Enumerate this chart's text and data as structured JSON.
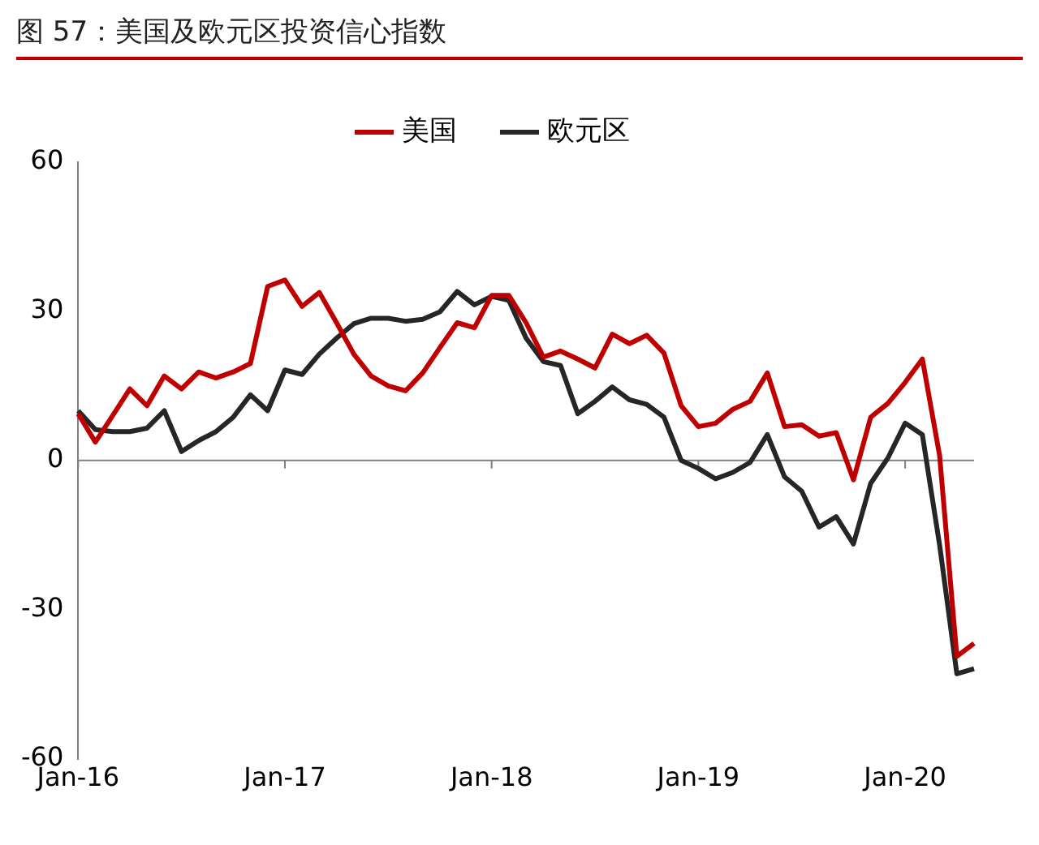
{
  "chart_data": {
    "type": "line",
    "title": "图 57：美国及欧元区投资信心指数",
    "categories": [
      "Jan-16",
      null,
      null,
      null,
      null,
      null,
      null,
      null,
      null,
      null,
      null,
      null,
      "Jan-17",
      null,
      null,
      null,
      null,
      null,
      null,
      null,
      null,
      null,
      null,
      null,
      "Jan-18",
      null,
      null,
      null,
      null,
      null,
      null,
      null,
      null,
      null,
      null,
      null,
      "Jan-19",
      null,
      null,
      null,
      null,
      null,
      null,
      null,
      null,
      null,
      null,
      null,
      "Jan-20",
      null,
      null,
      null,
      null
    ],
    "series": [
      {
        "name": "美国",
        "color": "#c00000",
        "values": [
          9.4,
          3.7,
          9,
          14.4,
          11,
          17,
          14.4,
          17.8,
          16.6,
          17.8,
          19.5,
          35,
          36.3,
          31,
          33.8,
          27.7,
          21.4,
          17,
          15,
          14,
          17.6,
          22.7,
          27.7,
          26.7,
          33.2,
          33.2,
          27.7,
          20.8,
          22,
          20.4,
          18.6,
          25.4,
          23.5,
          25.2,
          21.6,
          11,
          6.8,
          7.5,
          10.3,
          11.9,
          17.6,
          6.8,
          7.2,
          4.9,
          5.6,
          -3.9,
          8.7,
          11.5,
          15.7,
          20.4,
          1,
          -39.4,
          -36.8
        ]
      },
      {
        "name": "欧元区",
        "color": "#262626",
        "values": [
          10,
          6.2,
          5.8,
          5.8,
          6.5,
          10,
          1.8,
          4,
          5.8,
          8.7,
          13.2,
          10,
          18.2,
          17.3,
          21.4,
          24.6,
          27.5,
          28.6,
          28.6,
          28,
          28.4,
          29.9,
          34,
          31.3,
          33,
          32.2,
          24.6,
          19.9,
          19.1,
          9.4,
          11.9,
          14.8,
          12.2,
          11.3,
          8.7,
          0,
          -1.6,
          -3.7,
          -2.4,
          -0.4,
          5.2,
          -3.3,
          -6.2,
          -13.4,
          -11.3,
          -16.8,
          -4.6,
          0.5,
          7.5,
          5.2,
          -17,
          -42.9,
          -41.9
        ]
      }
    ],
    "ylim": [
      -60,
      60
    ],
    "yticks": [
      -60,
      -30,
      0,
      30,
      60
    ],
    "grid": false,
    "legend": "top",
    "marker": "none",
    "line_style": "solid",
    "ref_lines": [
      {
        "axis": "y",
        "value": 0,
        "color": "#808080"
      }
    ]
  }
}
